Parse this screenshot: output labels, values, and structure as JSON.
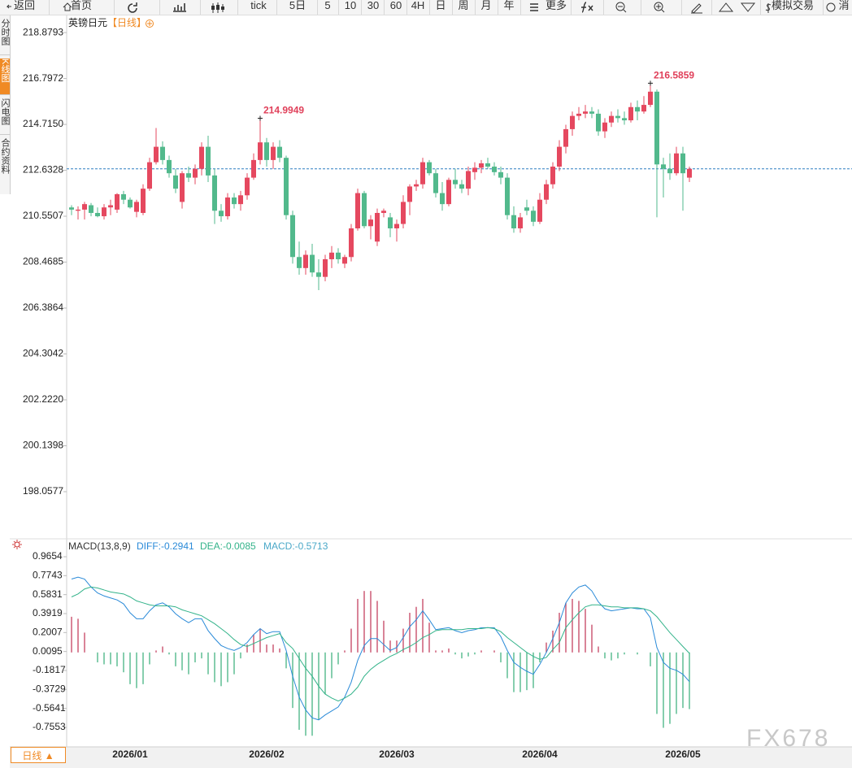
{
  "toolbar": [
    "返回",
    "首页",
    "tick",
    "5日",
    "5",
    "10",
    "30",
    "60",
    "4H",
    "日",
    "周",
    "月",
    "年",
    "更多",
    "模拟交易",
    "消"
  ],
  "sidebar": [
    "分时图",
    "K线图",
    "闪电图",
    "合约资料"
  ],
  "period_tab": "日线 ▲",
  "watermark": "FX678",
  "chart_data": [
    {
      "type": "candlestick",
      "title": "英镑日元",
      "subtitle": "【日线】",
      "up_color": "#e5485f",
      "down_color": "#52b98c",
      "categories": [
        null,
        null,
        null,
        null,
        null,
        null,
        null,
        null,
        null,
        "2026/01",
        null,
        null,
        null,
        null,
        null,
        null,
        null,
        null,
        null,
        null,
        null,
        null,
        null,
        null,
        null,
        null,
        null,
        null,
        null,
        null,
        "2026/02",
        null,
        null,
        null,
        null,
        null,
        null,
        null,
        null,
        null,
        null,
        null,
        null,
        null,
        null,
        null,
        null,
        null,
        null,
        null,
        "2026/03",
        null,
        null,
        null,
        null,
        null,
        null,
        null,
        null,
        null,
        null,
        null,
        null,
        null,
        null,
        null,
        null,
        null,
        null,
        null,
        null,
        null,
        "2026/04",
        null,
        null,
        null,
        null,
        null,
        null,
        null,
        null,
        null,
        null,
        null,
        null,
        null,
        null,
        null,
        null,
        null,
        null,
        null,
        null,
        null,
        "2026/05",
        null
      ],
      "open": [
        210.95,
        210.8,
        210.85,
        211.05,
        210.7,
        210.55,
        210.95,
        210.85,
        211.55,
        211.3,
        210.75,
        210.7,
        211.8,
        213.0,
        213.7,
        213.1,
        212.4,
        211.2,
        212.5,
        212.3,
        212.7,
        213.7,
        212.4,
        210.8,
        210.55,
        211.4,
        211.1,
        211.5,
        212.3,
        213.1,
        213.9,
        213.1,
        213.7,
        213.2,
        210.6,
        208.7,
        208.2,
        208.8,
        208.0,
        207.8,
        208.6,
        208.9,
        208.4,
        208.7,
        210.0,
        211.6,
        210.1,
        209.4,
        210.7,
        210.5,
        210.0,
        210.2,
        211.2,
        211.9,
        212.0,
        213.0,
        212.5,
        211.6,
        211.1,
        212.2,
        212.0,
        211.8,
        212.55,
        212.75,
        212.95,
        212.8,
        212.55,
        212.3,
        210.6,
        210.0,
        210.95,
        210.8,
        210.3,
        211.3,
        212.0,
        212.8,
        213.7,
        214.5,
        215.1,
        215.2,
        215.3,
        215.2,
        214.4,
        214.8,
        215.1,
        215.0,
        214.9,
        215.5,
        215.3,
        215.6,
        216.2,
        212.9,
        212.7,
        212.5,
        213.4,
        212.3
      ],
      "high": [
        211.05,
        211.0,
        211.2,
        211.15,
        210.95,
        211.1,
        211.3,
        211.6,
        211.7,
        211.4,
        211.3,
        212.0,
        213.2,
        214.55,
        213.95,
        213.3,
        212.7,
        212.6,
        212.8,
        212.9,
        213.9,
        214.2,
        212.7,
        211.1,
        211.6,
        211.6,
        211.7,
        212.5,
        213.4,
        214.9949,
        214.1,
        213.9,
        214.0,
        213.3,
        210.8,
        209.4,
        209.0,
        209.3,
        208.6,
        208.8,
        209.2,
        209.1,
        208.8,
        210.2,
        211.8,
        211.7,
        210.6,
        210.9,
        210.9,
        210.7,
        210.4,
        211.5,
        212.0,
        212.2,
        213.2,
        213.1,
        212.7,
        212.1,
        212.3,
        212.7,
        212.2,
        212.8,
        213.0,
        213.1,
        213.2,
        213.0,
        212.8,
        212.5,
        211.0,
        210.7,
        211.3,
        211.0,
        211.6,
        212.2,
        213.0,
        214.0,
        214.7,
        215.3,
        215.5,
        215.6,
        215.5,
        215.4,
        215.0,
        215.3,
        215.4,
        215.3,
        215.7,
        215.8,
        216.0,
        216.5859,
        216.3,
        213.2,
        213.4,
        213.7,
        213.7,
        212.8
      ],
      "low": [
        210.6,
        210.4,
        210.4,
        210.55,
        210.5,
        210.4,
        210.6,
        210.7,
        211.1,
        210.9,
        210.5,
        210.6,
        211.7,
        212.9,
        212.9,
        212.3,
        211.6,
        210.9,
        212.1,
        212.0,
        212.4,
        212.1,
        210.2,
        210.3,
        210.4,
        210.9,
        210.8,
        211.3,
        212.2,
        212.9,
        212.8,
        212.7,
        213.0,
        210.4,
        208.4,
        207.9,
        207.9,
        207.8,
        207.2,
        207.6,
        208.2,
        208.4,
        208.2,
        208.5,
        209.9,
        210.0,
        209.5,
        209.2,
        210.5,
        209.6,
        209.4,
        210.0,
        210.6,
        211.7,
        211.8,
        212.4,
        211.4,
        210.8,
        211.0,
        211.8,
        211.6,
        211.5,
        212.2,
        212.5,
        212.7,
        212.4,
        212.0,
        210.4,
        209.8,
        209.8,
        210.6,
        210.1,
        210.2,
        211.1,
        211.8,
        212.6,
        213.4,
        214.2,
        214.9,
        215.0,
        215.0,
        214.2,
        214.1,
        214.6,
        214.8,
        214.7,
        214.8,
        214.9,
        215.2,
        215.5,
        210.5,
        211.4,
        212.2,
        212.4,
        210.8,
        212.1
      ],
      "close": [
        210.85,
        210.85,
        211.1,
        210.7,
        210.55,
        210.95,
        211.05,
        211.55,
        211.3,
        210.95,
        211.2,
        211.8,
        213.0,
        213.7,
        213.1,
        212.5,
        211.8,
        212.5,
        212.3,
        212.7,
        213.7,
        212.4,
        210.8,
        210.55,
        211.4,
        211.1,
        211.5,
        212.3,
        213.1,
        213.9,
        213.1,
        213.7,
        213.2,
        210.6,
        208.7,
        208.2,
        208.8,
        208.0,
        207.8,
        208.6,
        208.9,
        208.6,
        208.7,
        210.0,
        211.6,
        210.1,
        210.4,
        210.7,
        210.8,
        210.0,
        210.2,
        211.2,
        211.9,
        212.0,
        213.0,
        212.5,
        211.6,
        211.1,
        212.2,
        212.0,
        211.8,
        212.6,
        212.75,
        212.95,
        212.8,
        212.55,
        212.3,
        210.6,
        210.0,
        210.5,
        210.8,
        210.3,
        211.3,
        212.0,
        212.8,
        213.7,
        214.5,
        215.1,
        215.2,
        215.3,
        215.2,
        214.4,
        214.8,
        215.1,
        215.0,
        214.9,
        215.5,
        215.3,
        215.6,
        216.2,
        212.9,
        212.7,
        212.5,
        213.4,
        212.5,
        212.7
      ],
      "last_price": 212.7,
      "last_price_color": "#2d7fc1",
      "annotations": [
        {
          "value": 214.9949
        },
        {
          "value": 216.5859
        }
      ],
      "annotation_color": "#e0405a",
      "ylim": [
        196.03,
        219.62
      ],
      "yticks": [
        218.8793,
        216.7972,
        {
          "value": 214.715,
          "label": "214.7150"
        },
        212.6328,
        210.5507,
        208.4685,
        206.3864,
        204.3042,
        {
          "value": 202.222,
          "label": "202.2220"
        },
        200.1398,
        198.0577
      ]
    },
    {
      "type": "macd",
      "title": "MACD(13,8,9)",
      "series": [
        {
          "name": "DIFF:-0.2941",
          "color": "#2a8ad8",
          "values": [
            0.74,
            0.76,
            0.74,
            0.66,
            0.6,
            0.57,
            0.55,
            0.53,
            0.49,
            0.4,
            0.34,
            0.34,
            0.42,
            0.48,
            0.5,
            0.46,
            0.39,
            0.34,
            0.3,
            0.34,
            0.34,
            0.22,
            0.14,
            0.07,
            0.04,
            0.02,
            0.05,
            0.1,
            0.18,
            0.24,
            0.19,
            0.21,
            0.21,
            0.02,
            -0.24,
            -0.45,
            -0.58,
            -0.66,
            -0.68,
            -0.63,
            -0.59,
            -0.55,
            -0.45,
            -0.3,
            -0.08,
            0.07,
            0.14,
            0.14,
            0.08,
            0.02,
            0.05,
            0.15,
            0.26,
            0.33,
            0.42,
            0.33,
            0.23,
            0.24,
            0.25,
            0.22,
            0.2,
            0.22,
            0.23,
            0.25,
            0.25,
            0.25,
            0.16,
            0.02,
            -0.1,
            -0.15,
            -0.19,
            -0.22,
            -0.12,
            0.0,
            0.14,
            0.3,
            0.5,
            0.6,
            0.66,
            0.68,
            0.62,
            0.51,
            0.44,
            0.42,
            0.43,
            0.44,
            0.45,
            0.44,
            0.44,
            0.35,
            0.05,
            -0.1,
            -0.16,
            -0.18,
            -0.22,
            -0.2941
          ]
        },
        {
          "name": "DEA:-0.0085",
          "color": "#33b38a",
          "values": [
            0.56,
            0.59,
            0.64,
            0.66,
            0.65,
            0.63,
            0.61,
            0.6,
            0.59,
            0.56,
            0.52,
            0.5,
            0.48,
            0.47,
            0.47,
            0.47,
            0.46,
            0.43,
            0.41,
            0.39,
            0.37,
            0.33,
            0.29,
            0.24,
            0.19,
            0.13,
            0.08,
            0.06,
            0.09,
            0.12,
            0.15,
            0.17,
            0.19,
            0.1,
            0.04,
            -0.06,
            -0.16,
            -0.24,
            -0.34,
            -0.42,
            -0.46,
            -0.49,
            -0.46,
            -0.42,
            -0.35,
            -0.24,
            -0.17,
            -0.12,
            -0.08,
            -0.04,
            -0.01,
            0.03,
            0.06,
            0.1,
            0.15,
            0.18,
            0.22,
            0.23,
            0.23,
            0.23,
            0.23,
            0.24,
            0.24,
            0.24,
            0.25,
            0.24,
            0.21,
            0.15,
            0.1,
            0.05,
            0.0,
            -0.04,
            -0.07,
            -0.05,
            0.03,
            0.1,
            0.25,
            0.33,
            0.4,
            0.46,
            0.48,
            0.48,
            0.47,
            0.46,
            0.46,
            0.45,
            0.45,
            0.45,
            0.44,
            0.42,
            0.36,
            0.28,
            0.2,
            0.13,
            0.06,
            -0.0085
          ]
        },
        {
          "name": "MACD:-0.5713",
          "color": "#4aa8c8",
          "up_color": "#c9506c",
          "down_color": "#52b98c",
          "values": [
            0.36,
            0.34,
            0.2,
            0.0,
            -0.1,
            -0.12,
            -0.12,
            -0.14,
            -0.2,
            -0.32,
            -0.36,
            -0.32,
            -0.12,
            0.02,
            0.06,
            -0.02,
            -0.14,
            -0.18,
            -0.22,
            -0.1,
            -0.06,
            -0.22,
            -0.3,
            -0.34,
            -0.3,
            -0.22,
            -0.06,
            0.08,
            0.18,
            0.24,
            0.08,
            0.08,
            0.04,
            -0.16,
            -0.56,
            -0.78,
            -0.84,
            -0.84,
            -0.68,
            -0.42,
            -0.26,
            -0.12,
            0.02,
            0.24,
            0.54,
            0.62,
            0.62,
            0.52,
            0.32,
            0.12,
            0.12,
            0.24,
            0.4,
            0.46,
            0.54,
            0.3,
            0.02,
            0.02,
            0.04,
            -0.02,
            -0.06,
            -0.04,
            -0.02,
            0.02,
            0.0,
            0.02,
            -0.1,
            -0.26,
            -0.4,
            -0.4,
            -0.38,
            -0.36,
            -0.1,
            0.1,
            0.22,
            0.4,
            0.5,
            0.54,
            0.52,
            0.44,
            0.28,
            0.06,
            -0.06,
            -0.08,
            -0.06,
            -0.02,
            0.0,
            -0.02,
            0.0,
            -0.14,
            -0.62,
            -0.76,
            -0.72,
            -0.62,
            -0.56,
            -0.5713
          ]
        }
      ],
      "ylim": [
        -0.944,
        1.023
      ],
      "yticks": [
        0.9654,
        0.7743,
        0.5831,
        0.3919,
        0.2007,
        0.0095,
        -0.1817,
        -0.3729,
        -0.5641,
        -0.7553
      ]
    }
  ]
}
